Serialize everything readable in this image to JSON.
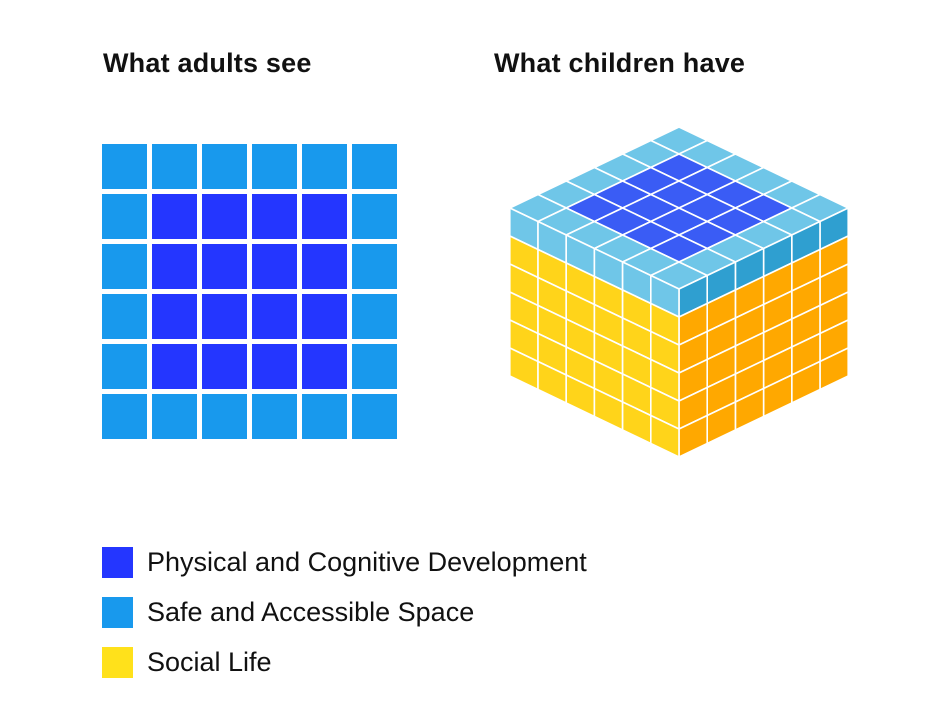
{
  "headings": {
    "left": "What adults see",
    "right": "What children have"
  },
  "colors": {
    "physical": "#2436FF",
    "safe": "#1899ED",
    "social": "#FFE11B",
    "cube_top_edge": "#6FC6E8",
    "cube_top_edge_dark": "#2F9FD0",
    "cube_top_inner": "#3A5CF5",
    "cube_left_face": "#FFA800",
    "cube_right_face": "#FFD41A"
  },
  "legend": [
    {
      "label": "Physical and Cognitive Development",
      "color_key": "physical"
    },
    {
      "label": "Safe and Accessible Space",
      "color_key": "safe"
    },
    {
      "label": "Social Life",
      "color_key": "social"
    }
  ],
  "grid": {
    "rows": 6,
    "cols": 6,
    "inner": "physical",
    "border": "safe"
  },
  "cube": {
    "size": 6,
    "top_layers": 1,
    "social_layers": 5
  }
}
